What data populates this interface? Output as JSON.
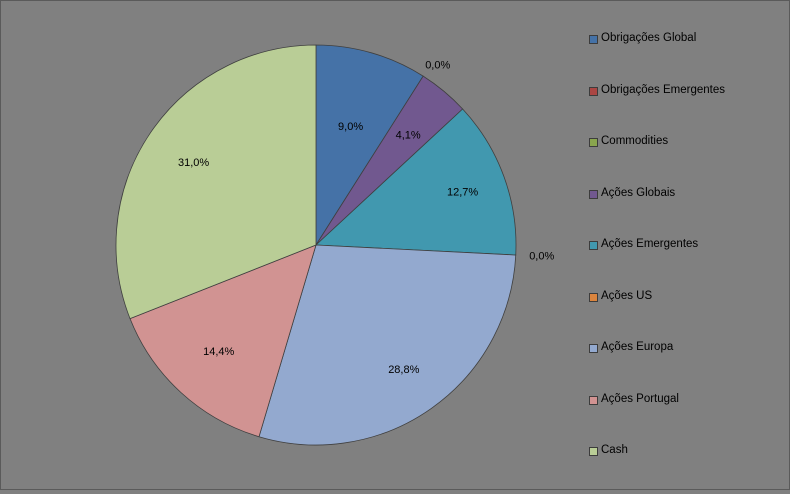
{
  "chart_data": {
    "type": "pie",
    "title": "",
    "start_angle_deg": 0,
    "direction": "clockwise",
    "legend_position": "right",
    "series": [
      {
        "label": "Obrigações Global",
        "value": 9.0,
        "display": "9,0%",
        "color": "#4572A7"
      },
      {
        "label": "Obrigações Emergentes",
        "value": 0.0,
        "display": "0,0%",
        "color": "#AA4643"
      },
      {
        "label": "Commodities",
        "value": 0.0,
        "display": "",
        "color": "#89A54E"
      },
      {
        "label": "Ações Globais",
        "value": 4.1,
        "display": "4,1%",
        "color": "#71588F"
      },
      {
        "label": "Ações Emergentes",
        "value": 12.7,
        "display": "12,7%",
        "color": "#4198AF"
      },
      {
        "label": "Ações US",
        "value": 0.0,
        "display": "0,0%",
        "color": "#DB843D"
      },
      {
        "label": "Ações Europa",
        "value": 28.8,
        "display": "28,8%",
        "color": "#93A9CF"
      },
      {
        "label": "Ações Portugal",
        "value": 14.4,
        "display": "14,4%",
        "color": "#D19392"
      },
      {
        "label": "Cash",
        "value": 31.0,
        "display": "31,0%",
        "color": "#B9CD96"
      }
    ]
  }
}
